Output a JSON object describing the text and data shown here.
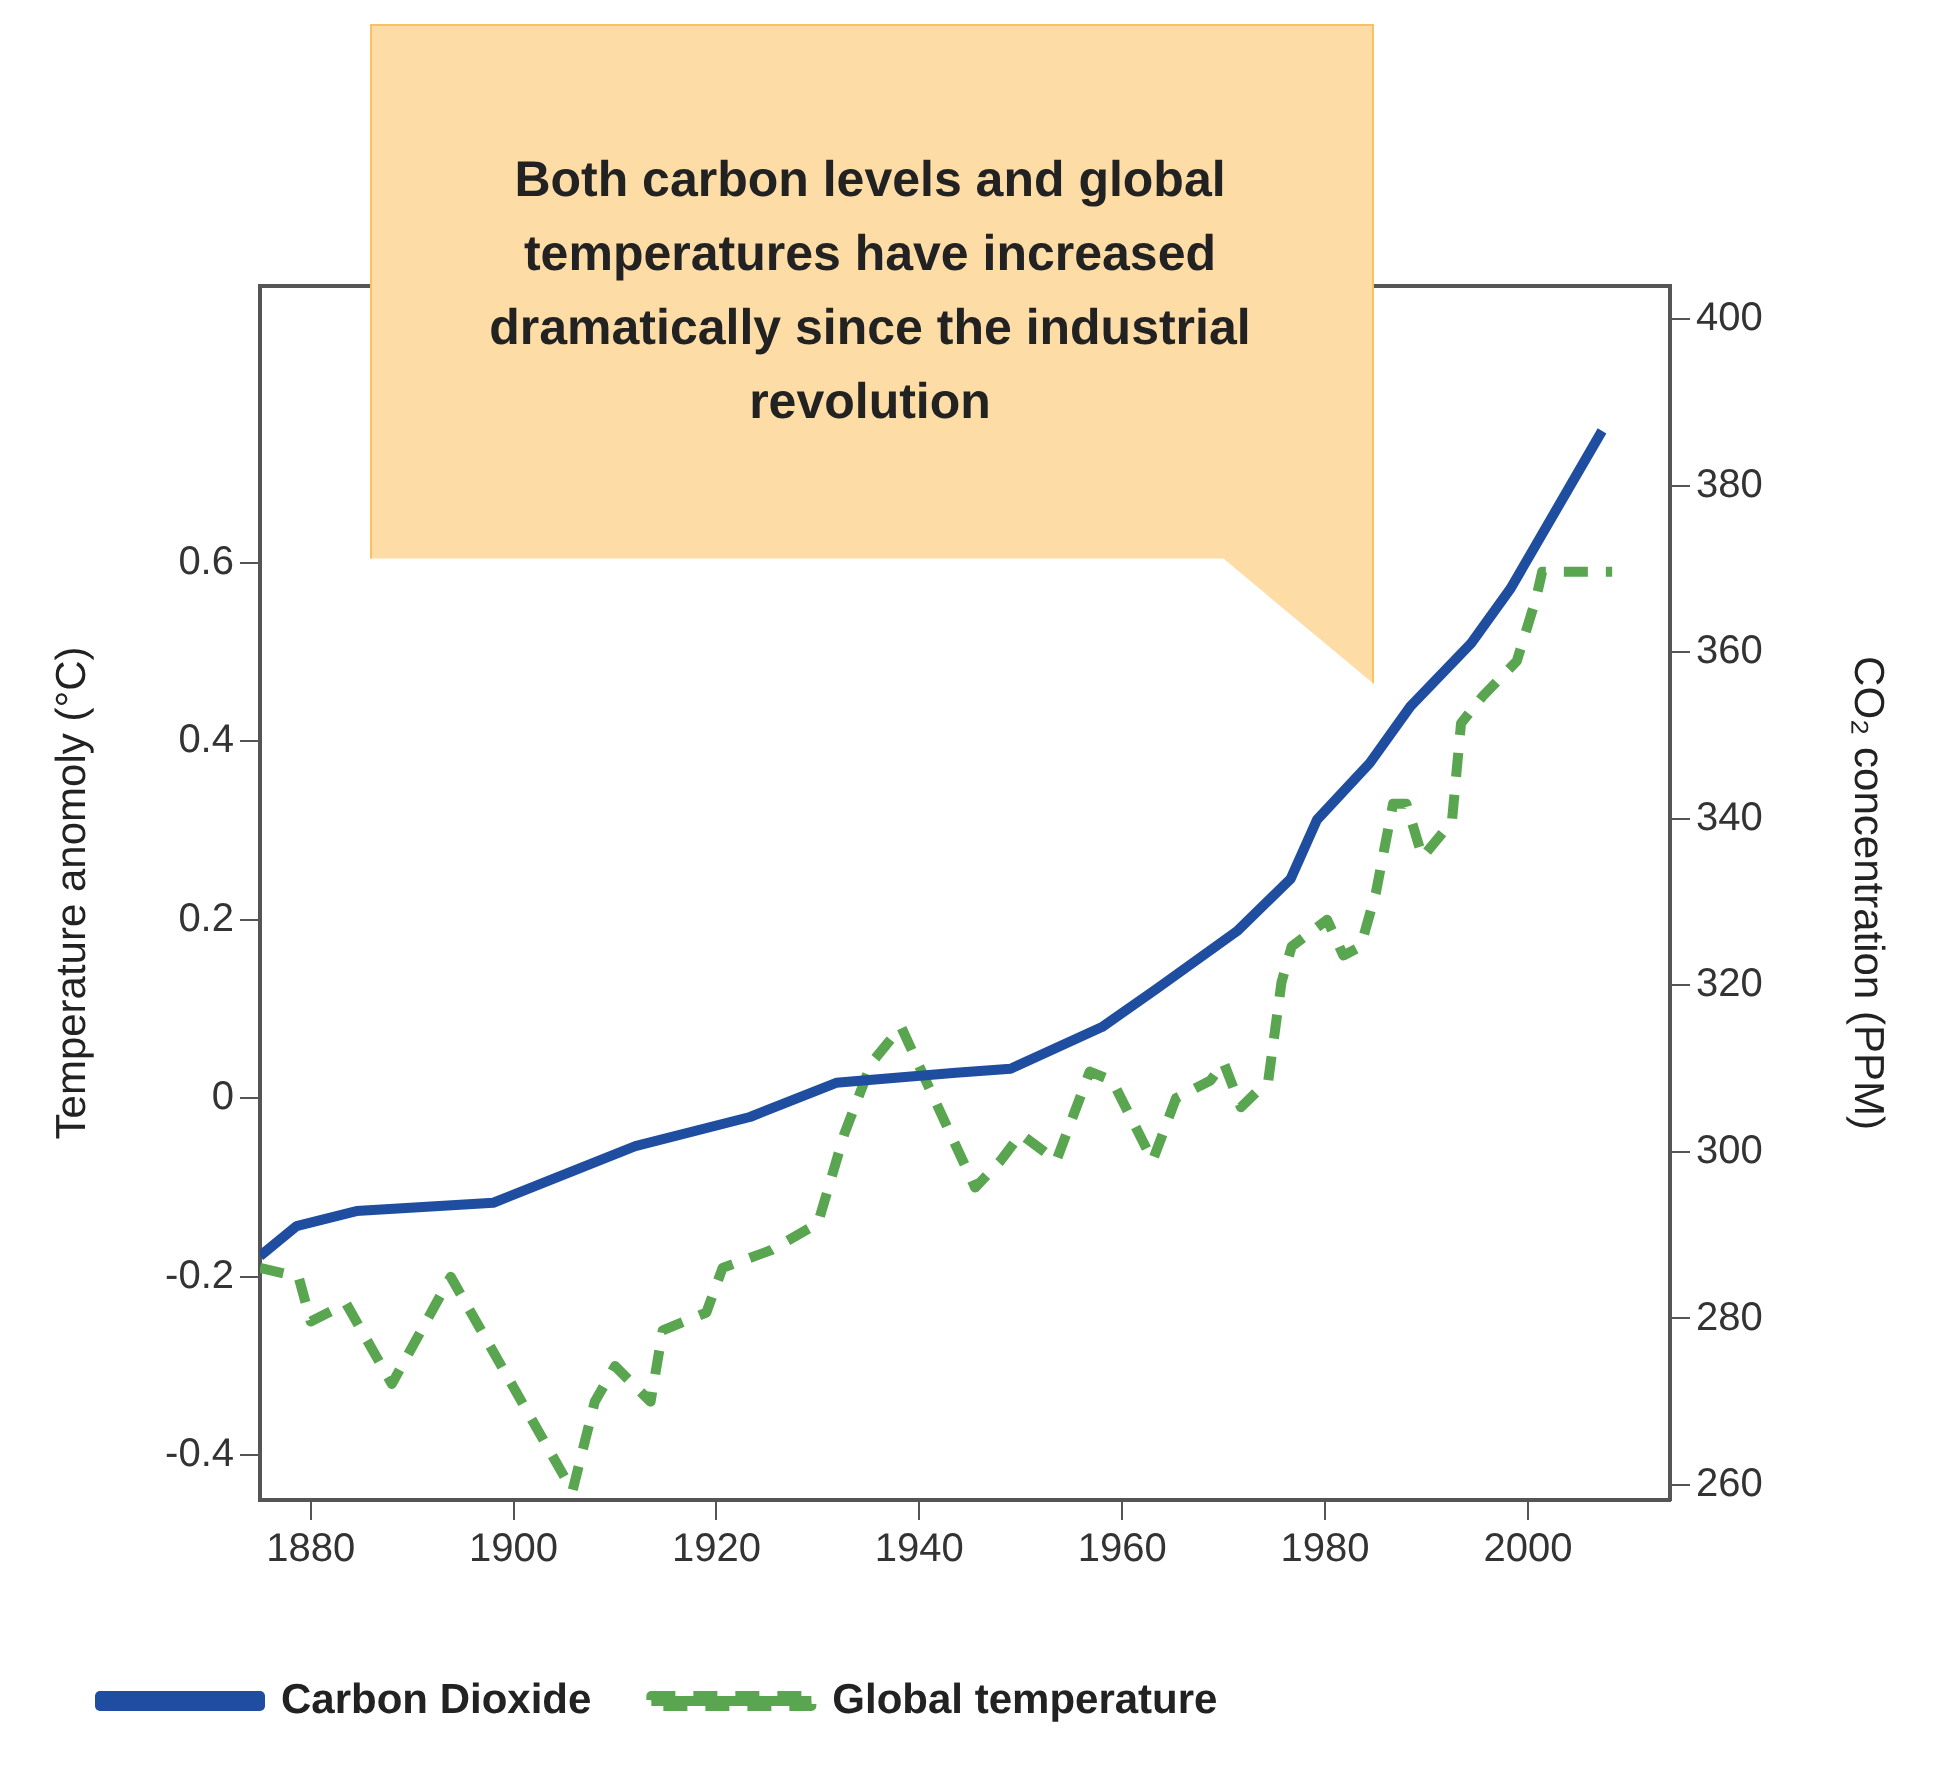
{
  "chart_data": {
    "type": "line",
    "xlim": [
      1875,
      2014
    ],
    "xticks": [
      1880,
      1900,
      1920,
      1940,
      1960,
      1980,
      2000
    ],
    "ylim": [
      -0.45,
      0.91
    ],
    "yticks": [
      -0.4,
      -0.2,
      0,
      0.2,
      0.4,
      0.6
    ],
    "y2lim": [
      258.2,
      404
    ],
    "y2ticks": [
      260,
      280,
      300,
      320,
      340,
      360,
      380,
      400
    ],
    "ylabel": "Temperature anomoly (°C)",
    "y2label": "CO₂ concentration (PPM)",
    "grid": false,
    "legend": "bottom left",
    "marker": "none",
    "annotations": [
      "Both carbon levels and global temperatures have increased dramatically since the industrial revolution"
    ],
    "series": [
      {
        "name": "Carbon Dioxide",
        "color": "#1f4ea1",
        "axis": "y2",
        "line_style": "solid",
        "x": [
          1875,
          1878.6,
          1884.5,
          1898,
          1912,
          1923.3,
          1931.8,
          1943.6,
          1949,
          1958,
          1963.4,
          1971.3,
          1976.6,
          1979.2,
          1984.4,
          1988.4,
          1994.4,
          1998.3,
          2007.3
        ],
        "values": [
          287.5,
          291.1,
          292.9,
          293.9,
          300.7,
          304.2,
          308.3,
          309.5,
          310,
          315,
          319.6,
          326.5,
          332.8,
          339.9,
          346.7,
          353.5,
          361.1,
          367.7,
          386.6
        ]
      },
      {
        "name": "Global temperature",
        "color": "#5aa550",
        "line_style": "dashed",
        "x": [
          1875,
          1878.8,
          1880,
          1883.5,
          1888,
          1893.8,
          1905.8,
          1908,
          1910,
          1913.5,
          1914.7,
          1919,
          1920.6,
          1925.4,
          1930,
          1932.6,
          1935.3,
          1938.2,
          1945.5,
          1948,
          1950,
          1953.5,
          1956.8,
          1959,
          1963,
          1965.3,
          1968.7,
          1970,
          1971.7,
          1974.4,
          1975.7,
          1976.7,
          1980.2,
          1981.8,
          1983.5,
          1985,
          1986.7,
          1988,
          1989.6,
          1992.5,
          1993.4,
          1995.5,
          1998.9,
          2000.8,
          2001.4,
          2005.4,
          2008.3
        ],
        "values": [
          -0.19,
          -0.2,
          -0.25,
          -0.23,
          -0.32,
          -0.2,
          -0.44,
          -0.34,
          -0.3,
          -0.34,
          -0.26,
          -0.24,
          -0.19,
          -0.17,
          -0.14,
          -0.04,
          0.04,
          0.08,
          -0.1,
          -0.07,
          -0.04,
          -0.07,
          0.03,
          0.02,
          -0.07,
          0,
          0.02,
          0.04,
          -0.01,
          0.02,
          0.13,
          0.17,
          0.2,
          0.16,
          0.17,
          0.23,
          0.33,
          0.33,
          0.27,
          0.31,
          0.42,
          0.45,
          0.49,
          0.56,
          0.59,
          0.59,
          0.59
        ]
      }
    ]
  }
}
